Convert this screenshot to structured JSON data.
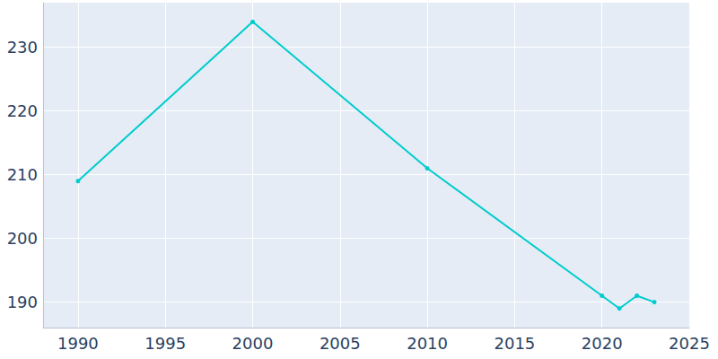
{
  "chart_data": {
    "type": "line",
    "x": [
      1990,
      2000,
      2010,
      2020,
      2021,
      2022,
      2023
    ],
    "values": [
      209,
      234,
      211,
      191,
      189,
      191,
      190
    ],
    "color": "#00cccc",
    "marker": "circle",
    "xlim": [
      1988,
      2025
    ],
    "xticks": [
      1990,
      1995,
      2000,
      2005,
      2010,
      2015,
      2020,
      2025
    ],
    "ylim": [
      186,
      237
    ],
    "yticks": [
      190,
      200,
      210,
      220,
      230
    ],
    "grid": true
  }
}
